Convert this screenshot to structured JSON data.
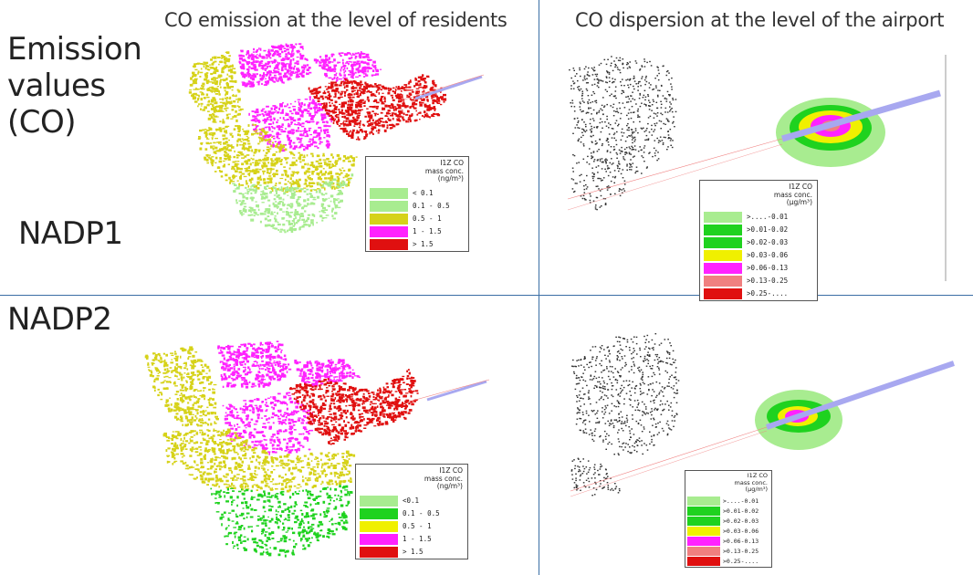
{
  "headers": {
    "left": "CO emission at the level of residents",
    "right": "CO dispersion at the level of the airport"
  },
  "rows": {
    "title_lines": [
      "Emission",
      "values",
      "(CO)"
    ],
    "row1": "NADP1",
    "row2": "NADP2"
  },
  "colors": {
    "divider": "#3a6ea5",
    "pale_green": "#a8ec90",
    "green": "#1fd21f",
    "yellow": "#d6d219",
    "magenta": "#ff22ff",
    "salmon": "#f08080",
    "red": "#e01010",
    "runway": "#a8a8f0"
  },
  "legends": {
    "res1": {
      "title": "I1Z CO",
      "line2": "mass conc.",
      "unit": "(ng/m³)",
      "items": [
        {
          "label": "< 0.1",
          "color": "#a8ec90"
        },
        {
          "label": "0.1 - 0.5",
          "color": "#a8ec90"
        },
        {
          "label": "0.5 - 1",
          "color": "#d6d219"
        },
        {
          "label": "1 - 1.5",
          "color": "#ff22ff"
        },
        {
          "label": "> 1.5",
          "color": "#e01010"
        }
      ]
    },
    "air1": {
      "title": "I1Z CO",
      "line2": "mass conc.",
      "unit": "(µg/m³)",
      "items": [
        {
          "label": ">....-0.01",
          "color": "#a8ec90"
        },
        {
          "label": ">0.01-0.02",
          "color": "#1fd21f"
        },
        {
          "label": ">0.02-0.03",
          "color": "#1fd21f"
        },
        {
          "label": ">0.03-0.06",
          "color": "#f0f000"
        },
        {
          "label": ">0.06-0.13",
          "color": "#ff22ff"
        },
        {
          "label": ">0.13-0.25",
          "color": "#f08080"
        },
        {
          "label": ">0.25-....",
          "color": "#e01010"
        }
      ]
    },
    "res2": {
      "title": "I1Z CO",
      "line2": "mass conc.",
      "unit": "(ng/m³)",
      "items": [
        {
          "label": "<0.1",
          "color": "#a8ec90"
        },
        {
          "label": "0.1 - 0.5",
          "color": "#1fd21f"
        },
        {
          "label": "0.5 - 1",
          "color": "#f0f000"
        },
        {
          "label": "1 - 1.5",
          "color": "#ff22ff"
        },
        {
          "label": "> 1.5",
          "color": "#e01010"
        }
      ]
    },
    "air2": {
      "title": "I1Z CO",
      "line2": "mass conc.",
      "unit": "(µg/m³)",
      "items": [
        {
          "label": ">....-0.01",
          "color": "#a8ec90"
        },
        {
          "label": ">0.01-0.02",
          "color": "#1fd21f"
        },
        {
          "label": ">0.02-0.03",
          "color": "#1fd21f"
        },
        {
          "label": ">0.03-0.06",
          "color": "#f0f000"
        },
        {
          "label": ">0.06-0.13",
          "color": "#ff22ff"
        },
        {
          "label": ">0.13-0.25",
          "color": "#f08080"
        },
        {
          "label": ">0.25-....",
          "color": "#e01010"
        }
      ]
    }
  }
}
